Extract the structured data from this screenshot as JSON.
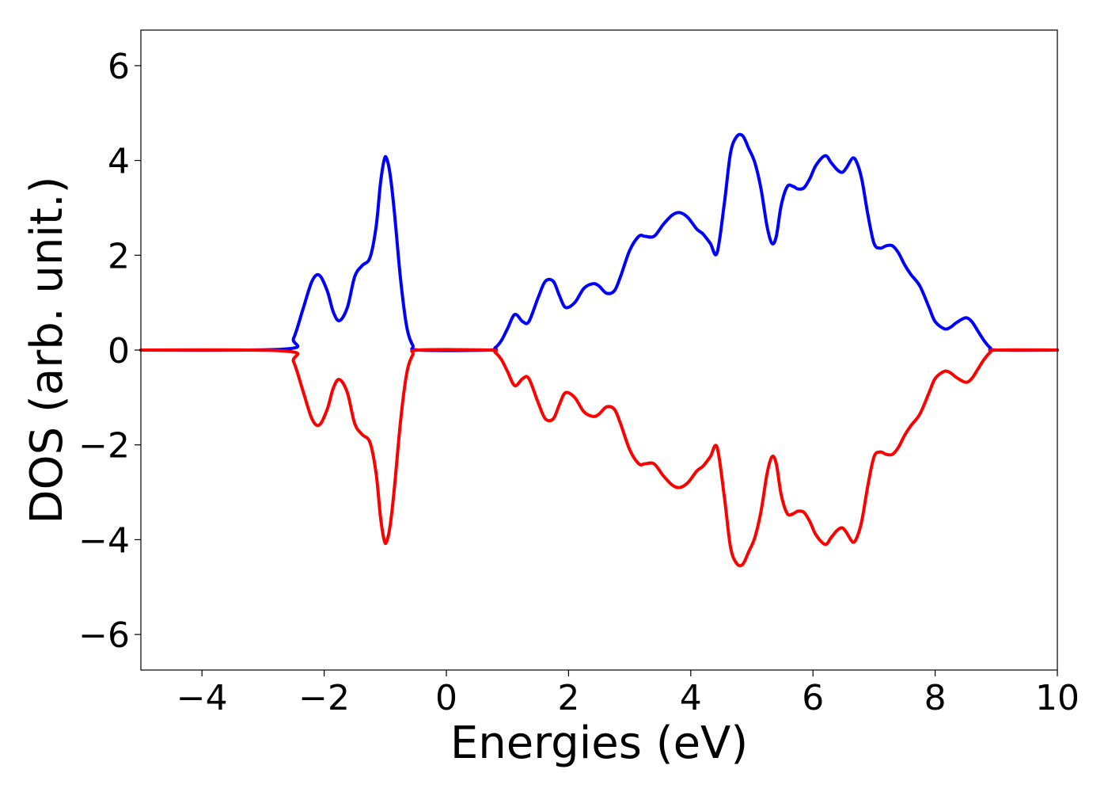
{
  "chart_data": {
    "type": "line",
    "title": "",
    "xlabel": "Energies (eV)",
    "ylabel": "DOS (arb. unit.)",
    "xlim": [
      -5,
      10
    ],
    "ylim": [
      -6.75,
      6.75
    ],
    "xticks": [
      -4,
      -2,
      0,
      2,
      4,
      6,
      8,
      10
    ],
    "xtick_labels": [
      "−4",
      "−2",
      "0",
      "2",
      "4",
      "6",
      "8",
      "10"
    ],
    "yticks": [
      -6,
      -4,
      -2,
      0,
      2,
      4,
      6
    ],
    "ytick_labels": [
      "−6",
      "−4",
      "−2",
      "0",
      "2",
      "4",
      "6"
    ],
    "grid": false,
    "legend": false,
    "series": [
      {
        "color": "#0000ff",
        "x": [
          -5,
          -2.65,
          -2.5,
          -2.35,
          -2.2,
          -2.08,
          -1.95,
          -1.85,
          -1.75,
          -1.62,
          -1.5,
          -1.38,
          -1.25,
          -1.15,
          -1.08,
          -1.02,
          -0.98,
          -0.92,
          -0.85,
          -0.75,
          -0.65,
          -0.55,
          -0.45,
          0.7,
          0.8,
          0.9,
          1.0,
          1.12,
          1.25,
          1.35,
          1.5,
          1.62,
          1.75,
          1.85,
          1.95,
          2.1,
          2.25,
          2.4,
          2.5,
          2.62,
          2.75,
          2.85,
          3.0,
          3.15,
          3.25,
          3.4,
          3.55,
          3.7,
          3.82,
          3.95,
          4.1,
          4.2,
          4.32,
          4.43,
          4.55,
          4.65,
          4.75,
          4.85,
          4.95,
          5.05,
          5.15,
          5.25,
          5.33,
          5.4,
          5.48,
          5.58,
          5.68,
          5.75,
          5.85,
          5.95,
          6.05,
          6.2,
          6.3,
          6.4,
          6.48,
          6.55,
          6.65,
          6.72,
          6.8,
          6.9,
          7.0,
          7.1,
          7.2,
          7.3,
          7.4,
          7.5,
          7.6,
          7.75,
          7.9,
          8.0,
          8.15,
          8.25,
          8.35,
          8.5,
          8.6,
          8.7,
          8.8,
          8.9,
          9.0,
          10
        ],
        "y": [
          0,
          0.02,
          0.25,
          0.85,
          1.45,
          1.58,
          1.25,
          0.8,
          0.62,
          0.9,
          1.55,
          1.78,
          1.95,
          2.6,
          3.5,
          4.0,
          4.05,
          3.7,
          2.9,
          1.5,
          0.5,
          0.1,
          0,
          0,
          0.05,
          0.2,
          0.45,
          0.75,
          0.6,
          0.6,
          1.1,
          1.45,
          1.45,
          1.15,
          0.9,
          1.0,
          1.3,
          1.4,
          1.35,
          1.2,
          1.25,
          1.55,
          2.1,
          2.4,
          2.4,
          2.4,
          2.65,
          2.85,
          2.9,
          2.8,
          2.55,
          2.45,
          2.25,
          2.05,
          3.1,
          4.15,
          4.5,
          4.52,
          4.25,
          3.95,
          3.4,
          2.6,
          2.25,
          2.4,
          3.05,
          3.45,
          3.45,
          3.4,
          3.42,
          3.62,
          3.9,
          4.1,
          3.95,
          3.8,
          3.75,
          3.85,
          4.05,
          3.95,
          3.6,
          2.85,
          2.25,
          2.15,
          2.2,
          2.2,
          2.05,
          1.8,
          1.6,
          1.35,
          0.9,
          0.6,
          0.45,
          0.48,
          0.58,
          0.68,
          0.6,
          0.4,
          0.2,
          0.05,
          0,
          0
        ]
      },
      {
        "color": "#ff0000",
        "x": [
          -5,
          -2.65,
          -2.5,
          -2.35,
          -2.2,
          -2.08,
          -1.95,
          -1.85,
          -1.75,
          -1.62,
          -1.5,
          -1.38,
          -1.25,
          -1.15,
          -1.08,
          -1.02,
          -0.98,
          -0.92,
          -0.85,
          -0.75,
          -0.65,
          -0.55,
          -0.45,
          0.7,
          0.8,
          0.9,
          1.0,
          1.12,
          1.25,
          1.35,
          1.5,
          1.62,
          1.75,
          1.85,
          1.95,
          2.1,
          2.25,
          2.4,
          2.5,
          2.62,
          2.75,
          2.85,
          3.0,
          3.15,
          3.25,
          3.4,
          3.55,
          3.7,
          3.82,
          3.95,
          4.1,
          4.2,
          4.32,
          4.43,
          4.55,
          4.65,
          4.75,
          4.85,
          4.95,
          5.05,
          5.15,
          5.25,
          5.33,
          5.4,
          5.48,
          5.58,
          5.68,
          5.75,
          5.85,
          5.95,
          6.05,
          6.2,
          6.3,
          6.4,
          6.48,
          6.55,
          6.65,
          6.72,
          6.8,
          6.9,
          7.0,
          7.1,
          7.2,
          7.3,
          7.4,
          7.5,
          7.6,
          7.75,
          7.9,
          8.0,
          8.15,
          8.25,
          8.35,
          8.5,
          8.6,
          8.7,
          8.8,
          8.9,
          9.0,
          10
        ],
        "y": [
          0,
          -0.02,
          -0.25,
          -0.85,
          -1.45,
          -1.58,
          -1.25,
          -0.8,
          -0.62,
          -0.9,
          -1.55,
          -1.78,
          -1.95,
          -2.6,
          -3.5,
          -4.0,
          -4.05,
          -3.7,
          -2.9,
          -1.5,
          -0.5,
          -0.1,
          0,
          0,
          -0.05,
          -0.2,
          -0.45,
          -0.75,
          -0.6,
          -0.6,
          -1.1,
          -1.45,
          -1.45,
          -1.15,
          -0.9,
          -1.0,
          -1.3,
          -1.4,
          -1.35,
          -1.2,
          -1.25,
          -1.55,
          -2.1,
          -2.4,
          -2.4,
          -2.4,
          -2.65,
          -2.85,
          -2.9,
          -2.8,
          -2.55,
          -2.45,
          -2.25,
          -2.05,
          -3.1,
          -4.15,
          -4.5,
          -4.52,
          -4.25,
          -3.95,
          -3.4,
          -2.6,
          -2.25,
          -2.4,
          -3.05,
          -3.45,
          -3.45,
          -3.4,
          -3.42,
          -3.62,
          -3.9,
          -4.1,
          -3.95,
          -3.8,
          -3.75,
          -3.85,
          -4.05,
          -3.95,
          -3.6,
          -2.85,
          -2.25,
          -2.15,
          -2.2,
          -2.2,
          -2.05,
          -1.8,
          -1.6,
          -1.35,
          -0.9,
          -0.6,
          -0.45,
          -0.48,
          -0.58,
          -0.68,
          -0.6,
          -0.4,
          -0.2,
          -0.05,
          0,
          0
        ]
      }
    ]
  }
}
